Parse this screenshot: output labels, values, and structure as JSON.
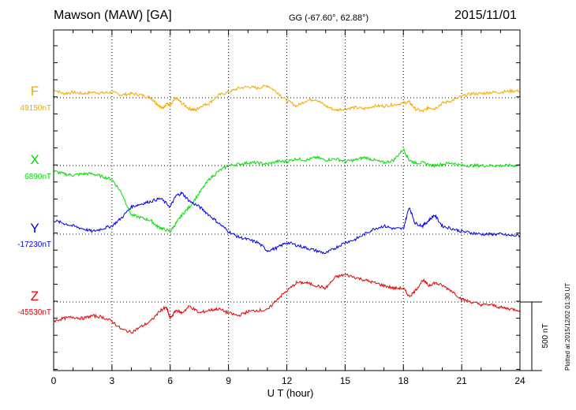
{
  "header": {
    "station": "Mawson (MAW)  [GA]",
    "coords": "GG (-67.60°,  62.88°)",
    "date": "2015/11/01"
  },
  "plotted": "Plotted at 2015/12/02 01:30 UT",
  "chart_data": {
    "type": "line",
    "xlabel": "U T (hour)",
    "xlim": [
      0,
      24
    ],
    "xticks": [
      "0",
      "3",
      "6",
      "9",
      "12",
      "15",
      "18",
      "21",
      "24"
    ],
    "grid": true,
    "scale_bar": "500 nT",
    "channels": [
      {
        "name": "F",
        "baseline": "49150nT",
        "color": "#f5a800",
        "x": [
          0,
          0.5,
          1,
          1.5,
          2,
          2.5,
          3,
          3.5,
          4,
          4.5,
          5,
          5.3,
          5.6,
          5.8,
          6,
          6.3,
          6.6,
          7,
          7.3,
          7.6,
          8,
          8.5,
          9,
          9.5,
          10,
          10.5,
          11,
          11.5,
          12,
          12.5,
          13,
          13.5,
          14,
          14.5,
          15,
          15.5,
          16,
          16.5,
          17,
          17.5,
          18,
          18.3,
          18.6,
          19,
          19.3,
          19.6,
          20,
          20.5,
          21,
          21.5,
          22,
          22.5,
          23,
          23.5,
          24
        ],
        "y": [
          60,
          30,
          40,
          30,
          40,
          35,
          40,
          20,
          30,
          20,
          0,
          -40,
          -80,
          -40,
          -60,
          0,
          -40,
          -80,
          -90,
          -60,
          -40,
          20,
          40,
          70,
          80,
          70,
          90,
          40,
          -20,
          -60,
          -20,
          -10,
          -60,
          -90,
          -80,
          -70,
          -80,
          -60,
          -60,
          -50,
          -40,
          -30,
          -80,
          -100,
          -70,
          -80,
          -40,
          -20,
          10,
          30,
          30,
          40,
          40,
          50,
          50
        ]
      },
      {
        "name": "X",
        "baseline": "6890nT",
        "color": "#00e000",
        "x": [
          0,
          0.5,
          1,
          1.5,
          2,
          2.5,
          3,
          3.5,
          4,
          4.5,
          5,
          5.3,
          5.6,
          6,
          6.3,
          6.6,
          7,
          7.5,
          8,
          8.5,
          9,
          9.5,
          10,
          10.5,
          11,
          11.5,
          12,
          12.5,
          13,
          13.5,
          14,
          14.5,
          15,
          15.5,
          16,
          16.5,
          17,
          17.5,
          18,
          18.3,
          18.6,
          19,
          19.5,
          20,
          20.5,
          21,
          21.5,
          22,
          22.5,
          23,
          23.5,
          24
        ],
        "y": [
          -40,
          -60,
          -70,
          -60,
          -60,
          -80,
          -100,
          -200,
          -360,
          -380,
          -400,
          -440,
          -460,
          -480,
          -420,
          -360,
          -300,
          -200,
          -100,
          -40,
          0,
          10,
          20,
          20,
          10,
          30,
          30,
          50,
          40,
          60,
          40,
          50,
          30,
          40,
          60,
          40,
          20,
          40,
          120,
          40,
          20,
          20,
          0,
          10,
          20,
          0,
          0,
          0,
          0,
          0,
          0,
          0
        ]
      },
      {
        "name": "Y",
        "baseline": "-17230nT",
        "color": "#0000e6",
        "x": [
          0,
          0.5,
          1,
          1.5,
          2,
          2.5,
          3,
          3.5,
          4,
          4.5,
          5,
          5.5,
          6,
          6.3,
          6.6,
          7,
          7.5,
          8,
          8.5,
          9,
          9.5,
          10,
          10.5,
          11,
          11.5,
          12,
          12.5,
          13,
          13.5,
          14,
          14.5,
          15,
          15.5,
          16,
          16.5,
          17,
          17.5,
          18,
          18.3,
          18.6,
          19,
          19.3,
          19.6,
          20,
          20.5,
          21,
          21.5,
          22,
          22.5,
          23,
          23.5,
          24
        ],
        "y": [
          100,
          80,
          60,
          40,
          20,
          40,
          60,
          120,
          200,
          220,
          240,
          260,
          200,
          280,
          300,
          240,
          200,
          140,
          80,
          20,
          -20,
          -40,
          -60,
          -120,
          -100,
          -60,
          -80,
          -100,
          -120,
          -140,
          -100,
          -60,
          -40,
          0,
          40,
          60,
          40,
          40,
          200,
          80,
          60,
          100,
          140,
          60,
          40,
          20,
          10,
          0,
          0,
          0,
          -10,
          -10
        ]
      },
      {
        "name": "Z",
        "baseline": "-45530nT",
        "color": "#e60000",
        "x": [
          0,
          0.5,
          1,
          1.5,
          2,
          2.5,
          3,
          3.5,
          4,
          4.5,
          5,
          5.5,
          5.8,
          6,
          6.3,
          6.6,
          7,
          7.5,
          8,
          8.5,
          9,
          9.5,
          10,
          10.5,
          11,
          11.5,
          12,
          12.5,
          13,
          13.5,
          14,
          14.5,
          15,
          15.5,
          16,
          16.5,
          17,
          17.5,
          18,
          18.3,
          18.6,
          19,
          19.3,
          19.6,
          20,
          20.5,
          21,
          21.5,
          22,
          22.5,
          23,
          23.5,
          24
        ],
        "y": [
          -140,
          -120,
          -110,
          -120,
          -100,
          -110,
          -140,
          -200,
          -220,
          -180,
          -140,
          -60,
          -40,
          -120,
          -60,
          -80,
          -30,
          -80,
          -60,
          -50,
          -80,
          -100,
          -70,
          -60,
          -60,
          20,
          80,
          140,
          140,
          120,
          100,
          180,
          200,
          180,
          160,
          140,
          120,
          100,
          100,
          40,
          80,
          160,
          120,
          140,
          120,
          80,
          20,
          0,
          -20,
          -20,
          -40,
          -50,
          -60
        ]
      }
    ]
  }
}
